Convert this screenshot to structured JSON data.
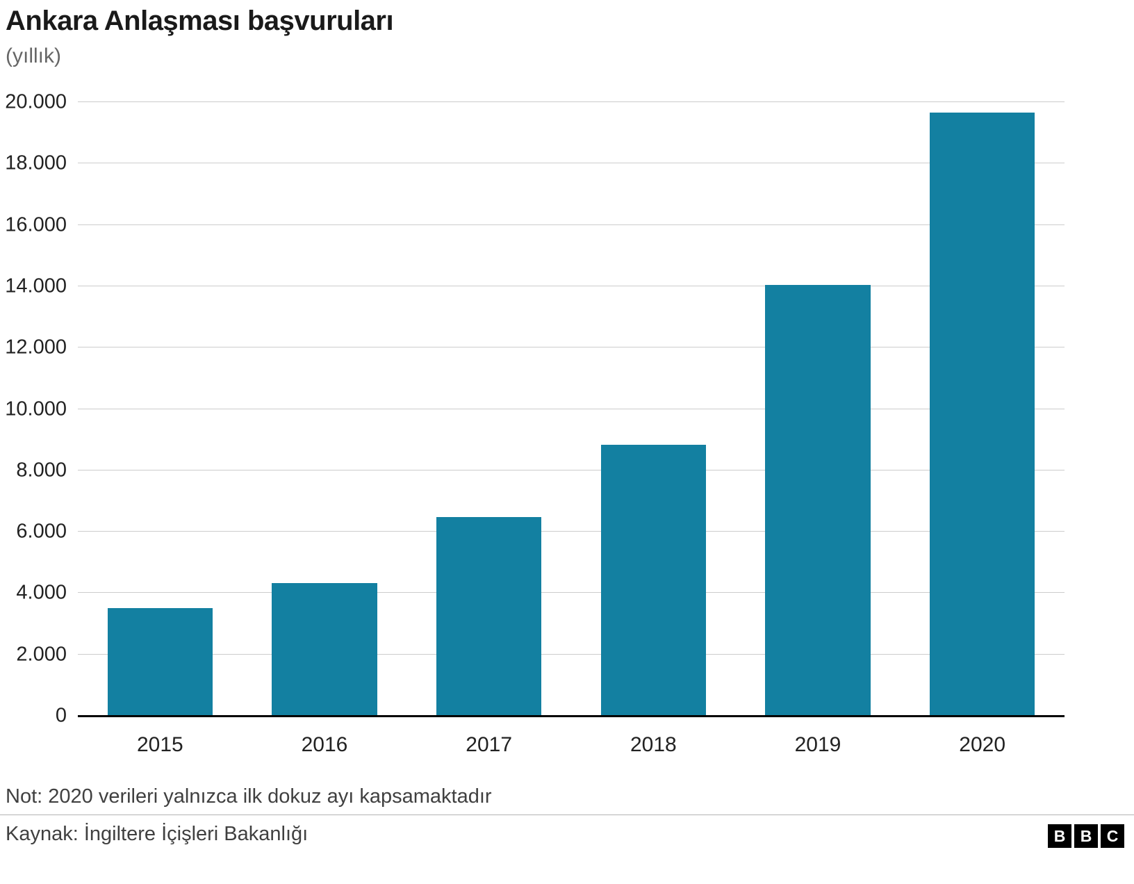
{
  "header": {
    "title": "Ankara Anlaşması başvuruları",
    "subtitle": "(yıllık)"
  },
  "chart_data": {
    "type": "bar",
    "title": "Ankara Anlaşması başvuruları",
    "subtitle": "(yıllık)",
    "categories": [
      "2015",
      "2016",
      "2017",
      "2018",
      "2019",
      "2020"
    ],
    "values": [
      3500,
      4330,
      6480,
      8830,
      14050,
      19650
    ],
    "xlabel": "",
    "ylabel": "",
    "ylim": [
      0,
      20000
    ],
    "yticks": [
      0,
      2000,
      4000,
      6000,
      8000,
      10000,
      12000,
      14000,
      16000,
      18000,
      20000
    ],
    "ytick_labels": [
      "0",
      "2.000",
      "4.000",
      "6.000",
      "8.000",
      "10.000",
      "12.000",
      "14.000",
      "16.000",
      "18.000",
      "20.000"
    ],
    "grid": true,
    "legend": "none",
    "bar_color": "#1380A1"
  },
  "footer": {
    "note": "Not: 2020 verileri yalnızca ilk dokuz ayı kapsamaktadır",
    "source": "Kaynak: İngiltere İçişleri Bakanlığı",
    "logo_letters": [
      "B",
      "B",
      "C"
    ]
  },
  "colors": {
    "bar": "#1380A1",
    "grid": "#cccccc",
    "axis": "#000000",
    "title": "#1a1a1a",
    "subtitle": "#666666",
    "note": "#404040"
  }
}
